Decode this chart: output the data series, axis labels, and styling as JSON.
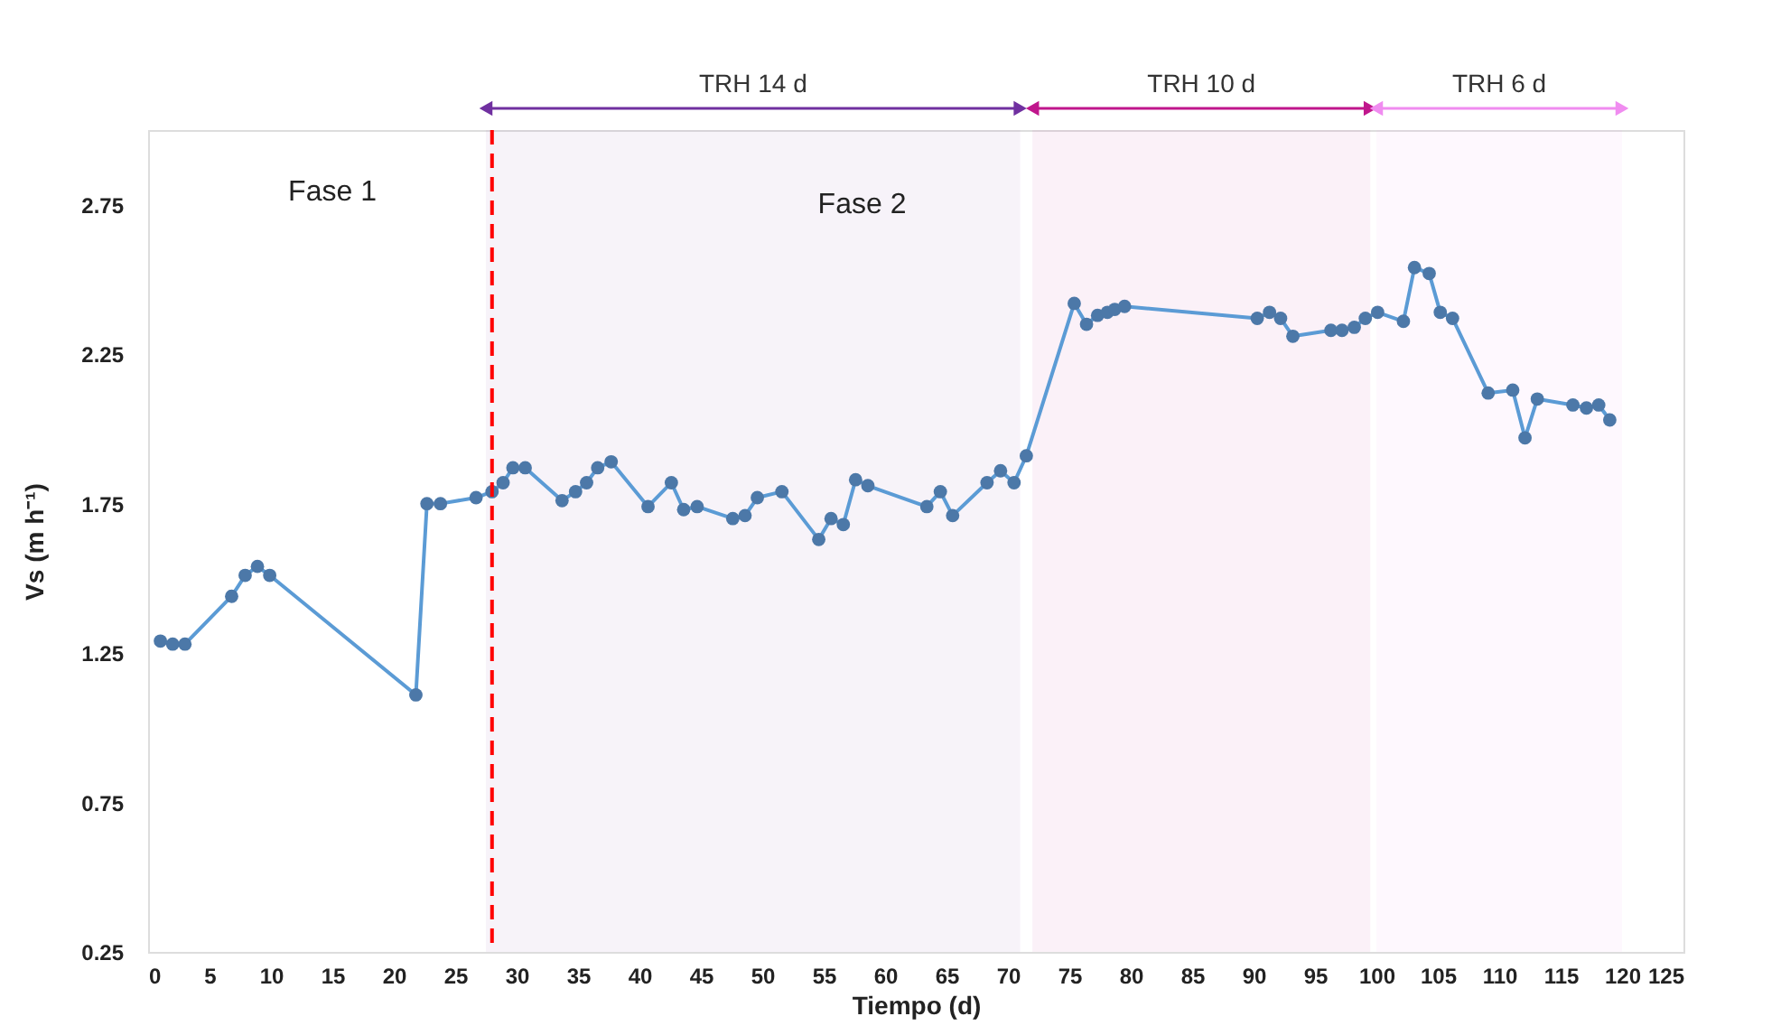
{
  "chart_data": {
    "type": "line",
    "xlabel": "Tiempo (d)",
    "ylabel": "Vs (m h⁻¹)",
    "xlim": [
      0,
      125
    ],
    "xticks": [
      0,
      5,
      10,
      15,
      20,
      25,
      30,
      35,
      40,
      45,
      50,
      55,
      60,
      65,
      70,
      75,
      80,
      85,
      90,
      95,
      100,
      105,
      110,
      115,
      120,
      125
    ],
    "ylim": [
      0.25,
      3.0
    ],
    "yticks": [
      0.25,
      0.75,
      1.25,
      1.75,
      2.25,
      2.75
    ],
    "grid": false,
    "marker": "circle",
    "line_style": "solid",
    "series": [
      {
        "color": "#5b9bd5",
        "x": [
          1,
          2,
          3,
          6.8,
          7.9,
          8.9,
          9.9,
          21.8,
          22.7,
          23.8,
          26.7,
          28.0,
          28.9,
          29.7,
          30.7,
          33.7,
          34.8,
          35.7,
          36.6,
          37.7,
          40.7,
          42.6,
          43.6,
          44.7,
          47.6,
          48.6,
          49.6,
          51.6,
          54.6,
          55.6,
          56.6,
          57.6,
          58.6,
          63.4,
          64.5,
          65.5,
          68.3,
          69.4,
          70.5,
          71.5,
          75.4,
          76.4,
          77.3,
          78.1,
          78.7,
          79.5,
          90.3,
          91.3,
          92.2,
          93.2,
          96.3,
          97.2,
          98.2,
          99.1,
          100.1,
          102.2,
          103.1,
          104.3,
          105.2,
          106.2,
          109.1,
          111.1,
          112.1,
          113.1,
          116.0,
          117.1,
          118.1,
          119.0
        ],
        "values": [
          1.29,
          1.28,
          1.28,
          1.44,
          1.51,
          1.54,
          1.51,
          1.11,
          1.75,
          1.75,
          1.77,
          1.79,
          1.82,
          1.87,
          1.87,
          1.76,
          1.79,
          1.82,
          1.87,
          1.89,
          1.74,
          1.82,
          1.73,
          1.74,
          1.7,
          1.71,
          1.77,
          1.79,
          1.63,
          1.7,
          1.68,
          1.83,
          1.81,
          1.74,
          1.79,
          1.71,
          1.82,
          1.86,
          1.82,
          1.91,
          2.42,
          2.35,
          2.38,
          2.39,
          2.4,
          2.41,
          2.37,
          2.39,
          2.37,
          2.31,
          2.33,
          2.33,
          2.34,
          2.37,
          2.39,
          2.36,
          2.54,
          2.52,
          2.39,
          2.37,
          2.12,
          2.13,
          1.97,
          2.1,
          2.08,
          2.07,
          2.08,
          2.03
        ]
      }
    ],
    "ref_lines": [
      {
        "axis": "x",
        "value": 28,
        "color": "#ff0000",
        "line_style": "dashed"
      }
    ],
    "bands": [
      {
        "axis": "x",
        "from": 27.5,
        "to": 71,
        "label": "TRH 14 d",
        "color": "#7030a0"
      },
      {
        "axis": "x",
        "from": 72,
        "to": 99.5,
        "label": "TRH 10 d",
        "color": "#c0168c"
      },
      {
        "axis": "x",
        "from": 100,
        "to": 120,
        "label": "TRH 6 d",
        "color": "#f08cf0"
      }
    ],
    "annotations": [
      "Fase 1",
      "Fase 2"
    ]
  }
}
